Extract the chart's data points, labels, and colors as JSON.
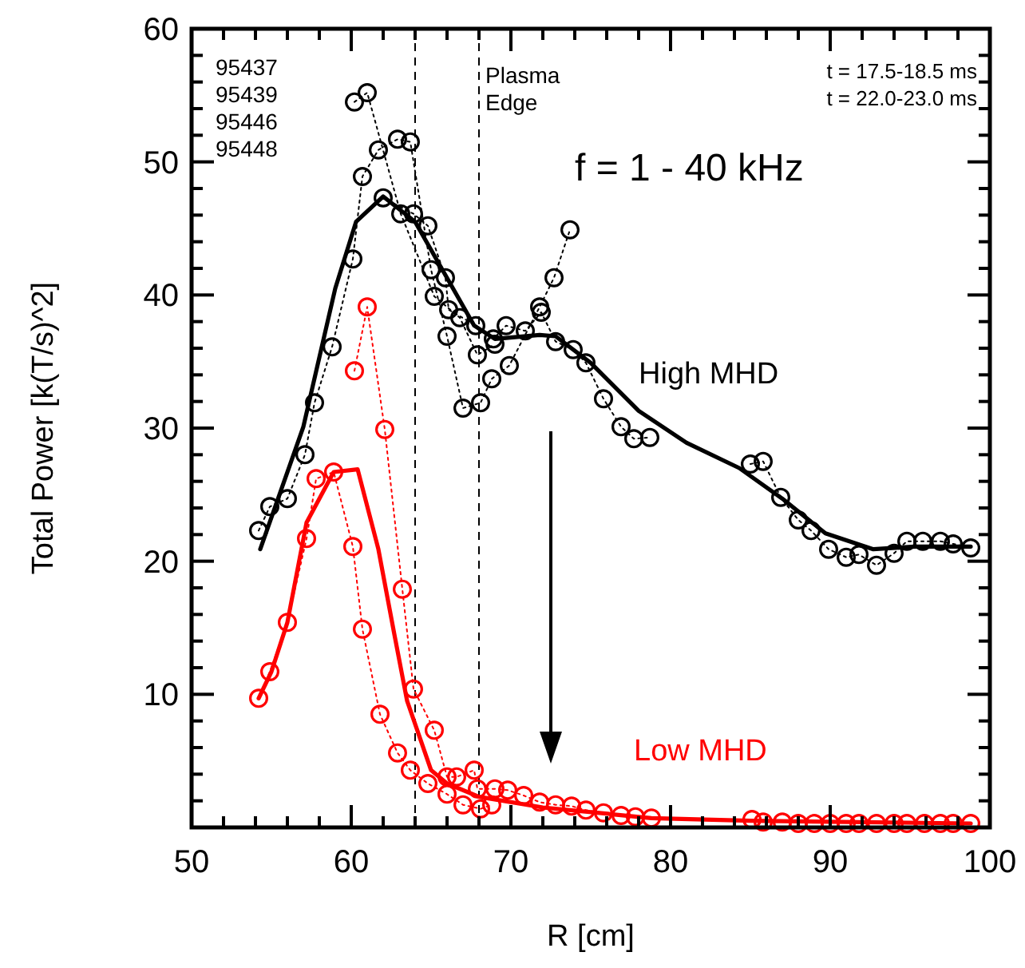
{
  "chart_data": {
    "type": "line",
    "xlabel": "R [cm]",
    "ylabel": "Total Power [k(T/s)^2]",
    "xlim": [
      50,
      100
    ],
    "ylim": [
      0,
      60
    ],
    "xticks": [
      50,
      {
        "value": 52,
        "label": null
      },
      {
        "value": 54,
        "label": null
      },
      {
        "value": 56,
        "label": null
      },
      {
        "value": 58,
        "label": null
      },
      60,
      {
        "value": 62,
        "label": null
      },
      {
        "value": 64,
        "label": null
      },
      {
        "value": 66,
        "label": null
      },
      {
        "value": 68,
        "label": null
      },
      70,
      {
        "value": 72,
        "label": null
      },
      {
        "value": 74,
        "label": null
      },
      {
        "value": 76,
        "label": null
      },
      {
        "value": 78,
        "label": null
      },
      80,
      {
        "value": 82,
        "label": null
      },
      {
        "value": 84,
        "label": null
      },
      {
        "value": 86,
        "label": null
      },
      {
        "value": 88,
        "label": null
      },
      90,
      {
        "value": 92,
        "label": null
      },
      {
        "value": 94,
        "label": null
      },
      {
        "value": 96,
        "label": null
      },
      {
        "value": 98,
        "label": null
      },
      100
    ],
    "yticks": [
      {
        "value": 0,
        "label": null
      },
      {
        "value": 2,
        "label": null
      },
      {
        "value": 4,
        "label": null
      },
      {
        "value": 6,
        "label": null
      },
      {
        "value": 8,
        "label": null
      },
      10,
      {
        "value": 12,
        "label": null
      },
      {
        "value": 14,
        "label": null
      },
      {
        "value": 16,
        "label": null
      },
      {
        "value": 18,
        "label": null
      },
      20,
      {
        "value": 22,
        "label": null
      },
      {
        "value": 24,
        "label": null
      },
      {
        "value": 26,
        "label": null
      },
      {
        "value": 28,
        "label": null
      },
      30,
      {
        "value": 32,
        "label": null
      },
      {
        "value": 34,
        "label": null
      },
      {
        "value": 36,
        "label": null
      },
      {
        "value": 38,
        "label": null
      },
      40,
      {
        "value": 42,
        "label": null
      },
      {
        "value": 44,
        "label": null
      },
      {
        "value": 46,
        "label": null
      },
      {
        "value": 48,
        "label": null
      },
      50,
      {
        "value": 52,
        "label": null
      },
      {
        "value": 54,
        "label": null
      },
      {
        "value": 56,
        "label": null
      },
      {
        "value": 58,
        "label": null
      },
      60
    ],
    "grid": false,
    "ref_lines": [
      {
        "axis": "x",
        "value": 64,
        "label": null,
        "line_style": "dashed",
        "color": "#000000"
      },
      {
        "axis": "x",
        "value": 68,
        "label": "Plasma Edge",
        "line_style": "dashed",
        "color": "#000000"
      }
    ],
    "annotations": [
      "95437",
      "95439",
      "95446",
      "95448",
      "t = 17.5-18.5 ms",
      "t = 22.0-23.0 ms",
      "f = 1 - 40 kHz"
    ],
    "series": [
      {
        "color": "#000000",
        "marker": "circle",
        "line_style": "dotted",
        "x": [
          54.2,
          54.9,
          56.0,
          57.1,
          57.7,
          58.8,
          60.1,
          60.7,
          61.7,
          62.9,
          63.7,
          65.0,
          66.0,
          67.0,
          68.1,
          68.8,
          69.9,
          71.8,
          72.7,
          73.7
        ],
        "values": [
          22.3,
          24.1,
          24.7,
          28.0,
          31.9,
          36.1,
          42.7,
          48.9,
          50.9,
          51.7,
          51.5,
          41.9,
          36.9,
          31.5,
          31.9,
          33.7,
          34.7,
          39.1,
          41.3,
          44.9
        ]
      },
      {
        "color": "#000000",
        "marker": "circle",
        "line_style": "dotted",
        "x": [
          60.2,
          61.0,
          63.1,
          65.2,
          66.8,
          67.9,
          69.0
        ],
        "values": [
          54.5,
          55.2,
          46.1,
          39.9,
          38.3,
          35.5,
          36.3
        ]
      },
      {
        "color": "#000000",
        "marker": "circle",
        "line_style": "dotted",
        "x": [
          62.0,
          63.9,
          64.8,
          65.9,
          66.1,
          67.8,
          68.9,
          69.7,
          70.9,
          71.9,
          72.8,
          73.9,
          74.7,
          75.8,
          76.9,
          77.7,
          78.7
        ],
        "values": [
          47.3,
          46.1,
          45.2,
          41.3,
          38.9,
          37.7,
          36.7,
          37.7,
          37.3,
          38.7,
          36.5,
          35.9,
          34.9,
          32.2,
          30.1,
          29.2,
          29.3
        ]
      },
      {
        "color": "#000000",
        "marker": "circle",
        "line_style": "dotted",
        "x": [
          85.0,
          85.8,
          86.9,
          88.0,
          88.8,
          89.9,
          91.0,
          91.8,
          92.9,
          94.0,
          94.8,
          95.8,
          96.9,
          97.7,
          98.8
        ],
        "values": [
          27.3,
          27.5,
          24.8,
          23.1,
          22.3,
          20.9,
          20.3,
          20.5,
          19.7,
          20.6,
          21.5,
          21.5,
          21.5,
          21.3,
          21.0
        ]
      },
      {
        "name": "High MHD",
        "color": "#000000",
        "marker": "none",
        "line_style": "solid",
        "x": [
          54.3,
          57,
          59,
          60.3,
          62,
          64,
          67.7,
          69,
          71.8,
          72.8,
          75,
          78,
          81,
          84.3,
          87,
          89.7,
          92.7,
          95.3,
          98.8
        ],
        "values": [
          20.9,
          30.1,
          40.5,
          45.5,
          47.4,
          45.5,
          37.7,
          36.7,
          37.0,
          36.9,
          34.9,
          31.3,
          28.9,
          27.0,
          24.7,
          22.1,
          20.9,
          21.1,
          21.1
        ]
      },
      {
        "color": "#ff0000",
        "marker": "circle",
        "line_style": "dotted",
        "x": [
          54.2,
          54.9,
          56.0,
          57.2,
          57.8,
          58.9,
          60.1,
          60.7,
          61.8,
          62.9,
          63.7,
          64.8,
          66.0,
          67.0,
          68.1,
          68.8
        ],
        "values": [
          9.7,
          11.7,
          15.4,
          21.7,
          26.2,
          26.7,
          21.1,
          14.9,
          8.5,
          5.6,
          4.3,
          3.3,
          2.5,
          1.7,
          1.4,
          1.7
        ]
      },
      {
        "color": "#ff0000",
        "marker": "circle",
        "line_style": "dotted",
        "x": [
          60.2,
          61.0,
          62.1,
          63.2,
          63.9,
          65.2,
          66.0,
          66.6,
          67.7,
          67.9,
          69.0,
          69.8,
          70.8,
          71.8,
          72.8,
          73.8,
          74.7,
          75.8,
          76.9,
          77.8,
          78.8
        ],
        "values": [
          34.3,
          39.1,
          29.9,
          17.9,
          10.4,
          7.3,
          3.8,
          3.8,
          4.3,
          2.9,
          2.9,
          2.8,
          2.4,
          1.9,
          1.7,
          1.6,
          1.3,
          1.1,
          0.9,
          0.8,
          0.7
        ]
      },
      {
        "type": "scatter",
        "color": "#ff0000",
        "marker": "circle",
        "x": [
          85.1,
          85.8,
          87.0,
          88.0,
          89.0,
          90.0,
          91.0,
          91.8,
          92.9,
          94.0,
          94.8,
          95.9,
          96.9,
          97.7,
          98.8
        ],
        "values": [
          0.6,
          0.4,
          0.4,
          0.3,
          0.3,
          0.3,
          0.3,
          0.3,
          0.3,
          0.3,
          0.3,
          0.3,
          0.3,
          0.3,
          0.3
        ]
      },
      {
        "name": "Low MHD",
        "color": "#ff0000",
        "marker": "none",
        "line_style": "solid",
        "x": [
          54.2,
          55,
          56,
          57.2,
          58.9,
          60.4,
          61.7,
          62.7,
          63.5,
          65,
          66,
          68,
          72,
          78.8,
          85,
          98.8
        ],
        "values": [
          9.7,
          11.7,
          15.4,
          22.9,
          26.7,
          26.9,
          20.9,
          14.5,
          9.5,
          4.3,
          3.3,
          2.3,
          1.5,
          0.7,
          0.5,
          0.3
        ]
      }
    ]
  }
}
